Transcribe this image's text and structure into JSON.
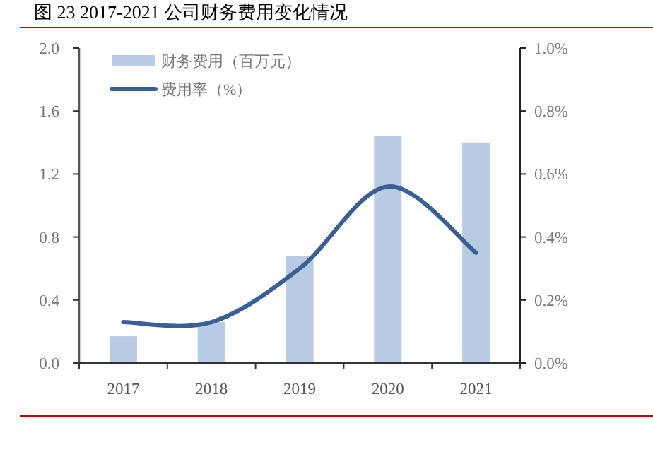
{
  "chart_data": {
    "type": "bar",
    "title": "图 23 2017-2021 公司财务费用变化情况",
    "categories": [
      "2017",
      "2018",
      "2019",
      "2020",
      "2021"
    ],
    "series": [
      {
        "name": "财务费用（百万元）",
        "color": "#b7cce4",
        "values": [
          0.17,
          0.26,
          0.68,
          1.44,
          1.4
        ]
      },
      {
        "name": "费用率（%）",
        "type": "line",
        "axis": "y2",
        "color": "#3a5f94",
        "values": [
          0.13,
          0.13,
          0.3,
          0.56,
          0.35
        ]
      }
    ],
    "ylim": [
      0,
      2.0
    ],
    "yticks": [
      {
        "value": 0,
        "label": "0.0"
      },
      {
        "value": 0.4,
        "label": "0.4"
      },
      {
        "value": 0.8,
        "label": "0.8"
      },
      {
        "value": 1.2,
        "label": "1.2"
      },
      {
        "value": 1.6,
        "label": "1.6"
      },
      {
        "value": 2.0,
        "label": "2.0"
      }
    ],
    "y2lim": [
      0,
      1.0
    ],
    "y2ticks": [
      {
        "value": 0,
        "label": "0.0%"
      },
      {
        "value": 0.2,
        "label": "0.2%"
      },
      {
        "value": 0.4,
        "label": "0.4%"
      },
      {
        "value": 0.6,
        "label": "0.6%"
      },
      {
        "value": 0.8,
        "label": "0.8%"
      },
      {
        "value": 1.0,
        "label": "1.0%"
      }
    ],
    "legend": "top left",
    "grid": false
  }
}
